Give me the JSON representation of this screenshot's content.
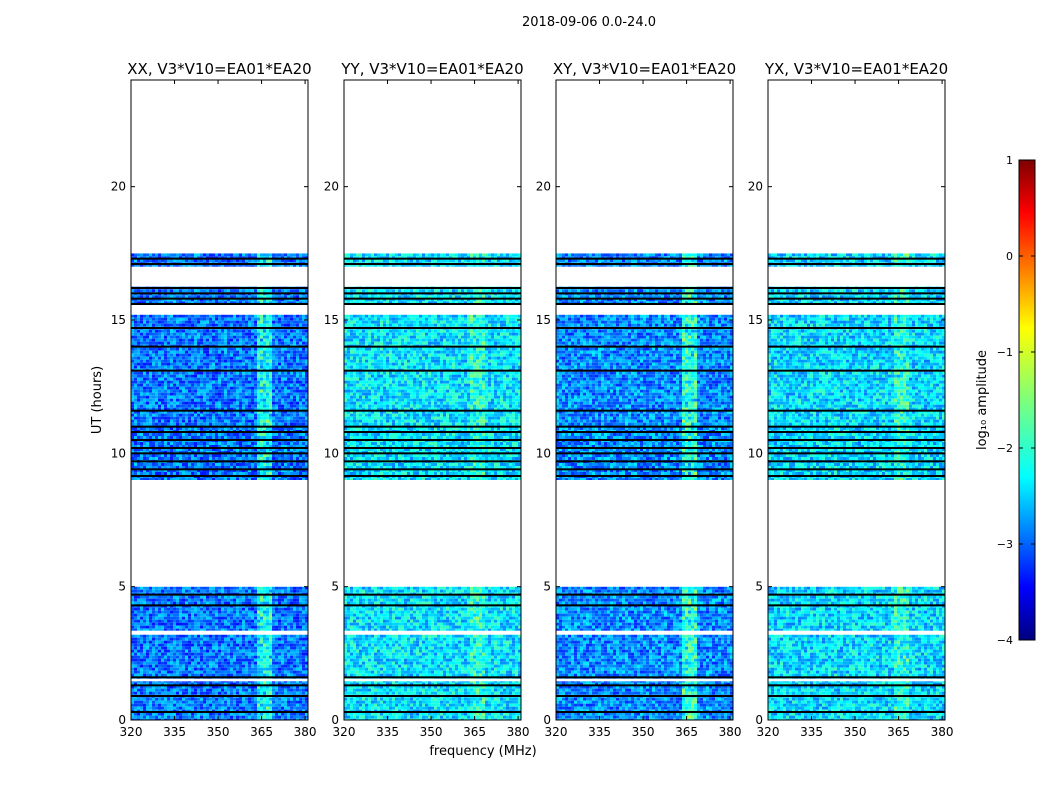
{
  "chart_data": {
    "type": "heatmap",
    "suptitle": "2018-09-06 0.0-24.0",
    "xlabel": "frequency (MHz)",
    "ylabel": "UT (hours)",
    "xlim": [
      320,
      381
    ],
    "ylim": [
      0,
      24
    ],
    "x_ticks": [
      320,
      335,
      350,
      365,
      380
    ],
    "y_ticks": [
      0,
      5,
      10,
      15,
      20
    ],
    "panels": [
      {
        "title": "XX, V3*V10=EA01*EA20",
        "polarization": "XX",
        "rfi_level": 0.85,
        "base_level": -2.8
      },
      {
        "title": "YY, V3*V10=EA01*EA20",
        "polarization": "YY",
        "rfi_level": 0.35,
        "base_level": -2.25
      },
      {
        "title": "XY, V3*V10=EA01*EA20",
        "polarization": "XY",
        "rfi_level": 0.85,
        "base_level": -2.7
      },
      {
        "title": "YX, V3*V10=EA01*EA20",
        "polarization": "YX",
        "rfi_level": 0.4,
        "base_level": -2.3
      }
    ],
    "data_blocks_hours": [
      [
        0.0,
        5.0
      ],
      [
        9.0,
        11.1
      ],
      [
        11.1,
        15.2
      ],
      [
        15.6,
        17.5
      ]
    ],
    "flagged_lines_hours": [
      0.3,
      0.9,
      1.3,
      1.6,
      3.3,
      4.3,
      4.7,
      9.15,
      9.4,
      9.7,
      10.0,
      10.2,
      10.5,
      10.8,
      11.0,
      11.6,
      13.1,
      14.0,
      14.7,
      15.6,
      15.8,
      16.0,
      16.2,
      17.1,
      17.3
    ],
    "white_gaps_hours": [
      [
        1.45,
        1.55
      ],
      [
        3.2,
        3.35
      ],
      [
        5.0,
        9.0
      ],
      [
        15.2,
        15.55
      ],
      [
        16.25,
        17.0
      ],
      [
        17.5,
        24.0
      ]
    ],
    "rfi_band_mhz": [
      363,
      368
    ],
    "colorbar": {
      "label": "log₁₀ amplitude",
      "range": [
        -4,
        1
      ],
      "ticks": [
        -4,
        -3,
        -2,
        -1,
        0,
        1
      ],
      "tick_labels": [
        "−4",
        "−3",
        "−2",
        "−1",
        "0",
        "1"
      ],
      "colormap": "jet"
    }
  }
}
